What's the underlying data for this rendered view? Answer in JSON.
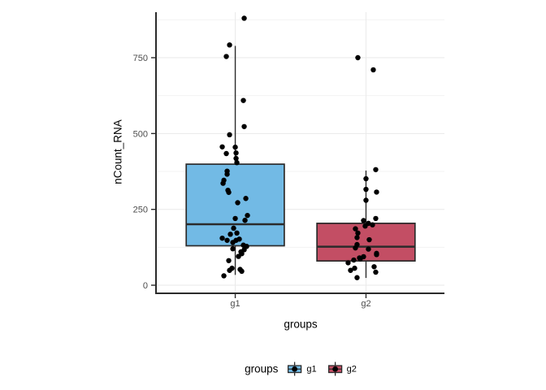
{
  "chart_data": {
    "type": "boxplot",
    "subtype": "boxplot-with-jitter-points",
    "title": "",
    "xlabel": "groups",
    "ylabel": "nCount_RNA",
    "categories": [
      "g1",
      "g2"
    ],
    "y_axis": {
      "ticks": [
        0,
        250,
        500,
        750
      ],
      "minor_ticks": [
        125,
        375,
        625,
        875
      ],
      "domain": [
        -24,
        900
      ]
    },
    "grid": true,
    "legend": {
      "title": "groups",
      "position": "bottom",
      "entries": [
        {
          "label": "g1",
          "color": "#72BAE5"
        },
        {
          "label": "g2",
          "color": "#C34E64"
        }
      ]
    },
    "groups": [
      {
        "name": "g1",
        "fill": "#72BAE5",
        "box": {
          "whisker_low": 34,
          "q1": 130,
          "median": 201,
          "q3": 399,
          "whisker_high": 789
        },
        "points": [
          [
            11,
            880
          ],
          [
            -7,
            792
          ],
          [
            -11,
            754
          ],
          [
            10,
            609
          ],
          [
            11,
            523
          ],
          [
            -7,
            496
          ],
          [
            -16,
            456
          ],
          [
            0,
            455
          ],
          [
            -11,
            434
          ],
          [
            1,
            436
          ],
          [
            1,
            418
          ],
          [
            2,
            404
          ],
          [
            -10,
            376
          ],
          [
            -10,
            366
          ],
          [
            -14,
            346
          ],
          [
            -15,
            336
          ],
          [
            -9,
            313
          ],
          [
            -8,
            306
          ],
          [
            13,
            286
          ],
          [
            3,
            272
          ],
          [
            15,
            230
          ],
          [
            0,
            220
          ],
          [
            12,
            214
          ],
          [
            -2,
            188
          ],
          [
            2,
            172
          ],
          [
            -6,
            168
          ],
          [
            -16,
            155
          ],
          [
            -10,
            148
          ],
          [
            1,
            148
          ],
          [
            5,
            152
          ],
          [
            -3,
            141
          ],
          [
            10,
            132
          ],
          [
            14,
            128
          ],
          [
            -3,
            120
          ],
          [
            11,
            117
          ],
          [
            7,
            110
          ],
          [
            8,
            104
          ],
          [
            4,
            95
          ],
          [
            -8,
            81
          ],
          [
            -4,
            56
          ],
          [
            -7,
            49
          ],
          [
            6,
            52
          ],
          [
            8,
            46
          ],
          [
            -14,
            31
          ]
        ]
      },
      {
        "name": "g2",
        "fill": "#C34E64",
        "box": {
          "whisker_low": 24,
          "q1": 80,
          "median": 127,
          "q3": 204,
          "whisker_high": 378
        },
        "points": [
          [
            -10,
            750
          ],
          [
            9,
            710
          ],
          [
            12,
            381
          ],
          [
            0,
            351
          ],
          [
            0,
            316
          ],
          [
            13,
            307
          ],
          [
            0,
            280
          ],
          [
            12,
            220
          ],
          [
            -3,
            213
          ],
          [
            3,
            204
          ],
          [
            8,
            199
          ],
          [
            -1,
            195
          ],
          [
            -13,
            186
          ],
          [
            -10,
            172
          ],
          [
            -11,
            157
          ],
          [
            4,
            150
          ],
          [
            -11,
            134
          ],
          [
            -13,
            123
          ],
          [
            3,
            119
          ],
          [
            13,
            105
          ],
          [
            13,
            101
          ],
          [
            -3,
            94
          ],
          [
            -8,
            90
          ],
          [
            -7,
            87
          ],
          [
            -15,
            83
          ],
          [
            -22,
            74
          ],
          [
            10,
            61
          ],
          [
            -14,
            56
          ],
          [
            -19,
            49
          ],
          [
            12,
            43
          ],
          [
            -11,
            25
          ]
        ]
      }
    ],
    "colors": {
      "background": "#ffffff",
      "box_border": "#2b2b2b",
      "point": "#000000",
      "grid_major": "#eaeaea",
      "grid_minor": "#f3f3f3",
      "axis": "#2b2b2b",
      "tick_label": "#4d4d4d",
      "title_text": "#000000"
    }
  }
}
